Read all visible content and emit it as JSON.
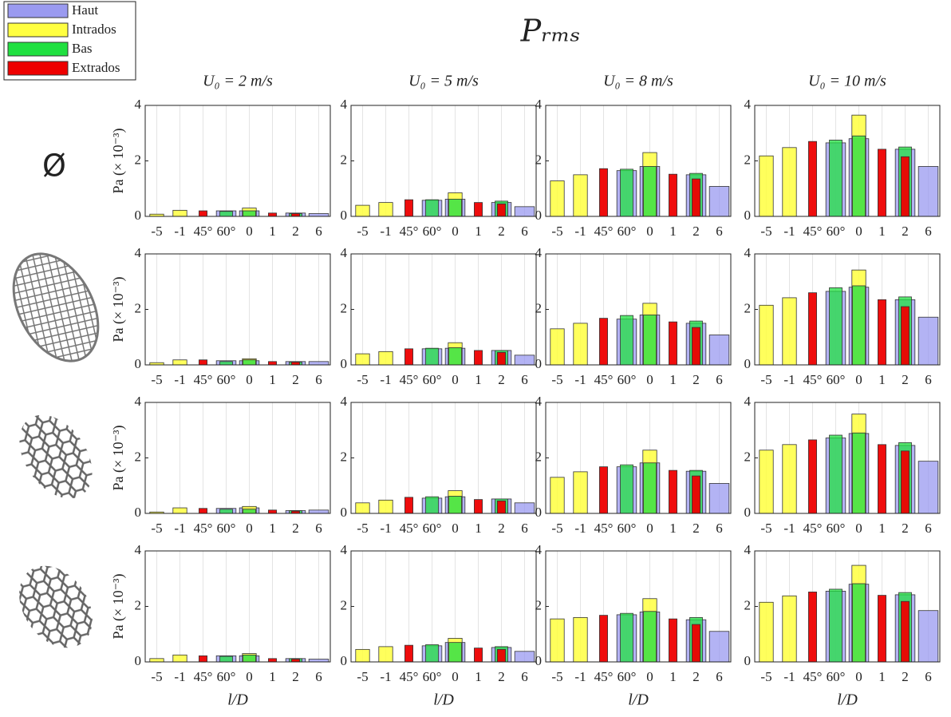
{
  "chart_data": {
    "type": "bar",
    "title": "Pᵣₘₛ",
    "column_titles": [
      "U₀ = 2 m/s",
      "U₀ = 5 m/s",
      "U₀ = 8 m/s",
      "U₀ = 10 m/s"
    ],
    "row_label": "Ø",
    "ylabel": "Pa (× 10⁻³)",
    "xlabel": "l/D",
    "categories": [
      "-5",
      "-1",
      "45°",
      "60°",
      "0",
      "1",
      "2",
      "6"
    ],
    "ylim": [
      0,
      4
    ],
    "yticks": [
      0,
      2,
      4
    ],
    "grid": true,
    "legend": "upper left",
    "series": [
      {
        "name": "Haut",
        "color": "#9a9af0",
        "values": [
          [
            null,
            null,
            null,
            0.2,
            0.2,
            null,
            0.12,
            0.1
          ],
          [
            null,
            null,
            null,
            0.58,
            0.62,
            null,
            0.5,
            0.35
          ],
          [
            null,
            null,
            null,
            1.65,
            1.8,
            null,
            1.5,
            1.08
          ],
          [
            null,
            null,
            null,
            2.65,
            2.8,
            null,
            2.42,
            1.8
          ],
          [
            null,
            null,
            null,
            0.15,
            0.15,
            null,
            0.12,
            0.12
          ],
          [
            null,
            null,
            null,
            0.58,
            0.6,
            null,
            0.52,
            0.35
          ],
          [
            null,
            null,
            null,
            1.65,
            1.8,
            null,
            1.5,
            1.08
          ],
          [
            null,
            null,
            null,
            2.65,
            2.8,
            null,
            2.35,
            1.72
          ],
          [
            null,
            null,
            null,
            0.18,
            0.2,
            null,
            0.1,
            0.12
          ],
          [
            null,
            null,
            null,
            0.55,
            0.6,
            null,
            0.52,
            0.38
          ],
          [
            null,
            null,
            null,
            1.68,
            1.82,
            null,
            1.52,
            1.08
          ],
          [
            null,
            null,
            null,
            2.72,
            2.88,
            null,
            2.45,
            1.88
          ],
          [
            null,
            null,
            null,
            0.22,
            0.22,
            null,
            0.12,
            0.1
          ],
          [
            null,
            null,
            null,
            0.58,
            0.7,
            null,
            0.52,
            0.38
          ],
          [
            null,
            null,
            null,
            1.7,
            1.8,
            null,
            1.52,
            1.1
          ],
          [
            null,
            null,
            null,
            2.55,
            2.8,
            null,
            2.42,
            1.85
          ]
        ]
      },
      {
        "name": "Intrados",
        "color": "#ffff40",
        "values": [
          [
            0.08,
            0.22,
            null,
            null,
            0.3,
            null,
            null,
            null
          ],
          [
            0.4,
            0.5,
            null,
            null,
            0.85,
            null,
            null,
            null
          ],
          [
            1.28,
            1.5,
            null,
            null,
            2.3,
            null,
            null,
            null
          ],
          [
            2.18,
            2.48,
            null,
            null,
            3.65,
            null,
            null,
            null
          ],
          [
            0.08,
            0.18,
            null,
            null,
            0.22,
            null,
            null,
            null
          ],
          [
            0.4,
            0.48,
            null,
            null,
            0.8,
            null,
            null,
            null
          ],
          [
            1.3,
            1.5,
            null,
            null,
            2.22,
            null,
            null,
            null
          ],
          [
            2.15,
            2.42,
            null,
            null,
            3.42,
            null,
            null,
            null
          ],
          [
            0.05,
            0.2,
            null,
            null,
            0.25,
            null,
            null,
            null
          ],
          [
            0.38,
            0.48,
            null,
            null,
            0.82,
            null,
            null,
            null
          ],
          [
            1.3,
            1.5,
            null,
            null,
            2.28,
            null,
            null,
            null
          ],
          [
            2.28,
            2.48,
            null,
            null,
            3.58,
            null,
            null,
            null
          ],
          [
            0.12,
            0.25,
            null,
            null,
            0.3,
            null,
            null,
            null
          ],
          [
            0.45,
            0.55,
            null,
            null,
            0.85,
            null,
            null,
            null
          ],
          [
            1.55,
            1.6,
            null,
            null,
            2.28,
            null,
            null,
            null
          ],
          [
            2.15,
            2.38,
            null,
            null,
            3.48,
            null,
            null,
            null
          ]
        ]
      },
      {
        "name": "Bas",
        "color": "#20e040",
        "values": [
          [
            null,
            null,
            null,
            0.18,
            0.2,
            null,
            0.1,
            null
          ],
          [
            null,
            null,
            null,
            0.6,
            0.62,
            null,
            0.55,
            null
          ],
          [
            null,
            null,
            null,
            1.7,
            1.8,
            null,
            1.55,
            null
          ],
          [
            null,
            null,
            null,
            2.75,
            2.9,
            null,
            2.5,
            null
          ],
          [
            null,
            null,
            null,
            0.12,
            0.18,
            null,
            0.1,
            null
          ],
          [
            null,
            null,
            null,
            0.6,
            0.62,
            null,
            0.52,
            null
          ],
          [
            null,
            null,
            null,
            1.78,
            1.8,
            null,
            1.58,
            null
          ],
          [
            null,
            null,
            null,
            2.78,
            2.85,
            null,
            2.45,
            null
          ],
          [
            null,
            null,
            null,
            0.15,
            0.15,
            null,
            0.1,
            null
          ],
          [
            null,
            null,
            null,
            0.6,
            0.62,
            null,
            0.52,
            null
          ],
          [
            null,
            null,
            null,
            1.75,
            1.82,
            null,
            1.55,
            null
          ],
          [
            null,
            null,
            null,
            2.82,
            2.9,
            null,
            2.55,
            null
          ],
          [
            null,
            null,
            null,
            0.2,
            0.25,
            null,
            0.12,
            null
          ],
          [
            null,
            null,
            null,
            0.62,
            0.7,
            null,
            0.55,
            null
          ],
          [
            null,
            null,
            null,
            1.75,
            1.82,
            null,
            1.6,
            null
          ],
          [
            null,
            null,
            null,
            2.62,
            2.82,
            null,
            2.5,
            null
          ]
        ]
      },
      {
        "name": "Extrados",
        "color": "#ee0000",
        "values": [
          [
            null,
            null,
            0.2,
            null,
            null,
            0.12,
            0.1,
            null
          ],
          [
            null,
            null,
            0.6,
            null,
            null,
            0.5,
            0.45,
            null
          ],
          [
            null,
            null,
            1.72,
            null,
            null,
            1.52,
            1.35,
            null
          ],
          [
            null,
            null,
            2.7,
            null,
            null,
            2.42,
            2.15,
            null
          ],
          [
            null,
            null,
            0.18,
            null,
            null,
            0.12,
            0.1,
            null
          ],
          [
            null,
            null,
            0.58,
            null,
            null,
            0.52,
            0.45,
            null
          ],
          [
            null,
            null,
            1.68,
            null,
            null,
            1.55,
            1.35,
            null
          ],
          [
            null,
            null,
            2.6,
            null,
            null,
            2.35,
            2.1,
            null
          ],
          [
            null,
            null,
            0.18,
            null,
            null,
            0.12,
            0.08,
            null
          ],
          [
            null,
            null,
            0.58,
            null,
            null,
            0.5,
            0.45,
            null
          ],
          [
            null,
            null,
            1.68,
            null,
            null,
            1.55,
            1.35,
            null
          ],
          [
            null,
            null,
            2.65,
            null,
            null,
            2.48,
            2.25,
            null
          ],
          [
            null,
            null,
            0.22,
            null,
            null,
            0.12,
            0.1,
            null
          ],
          [
            null,
            null,
            0.6,
            null,
            null,
            0.5,
            0.45,
            null
          ],
          [
            null,
            null,
            1.68,
            null,
            null,
            1.55,
            1.35,
            null
          ],
          [
            null,
            null,
            2.52,
            null,
            null,
            2.4,
            2.18,
            null
          ]
        ]
      }
    ]
  }
}
